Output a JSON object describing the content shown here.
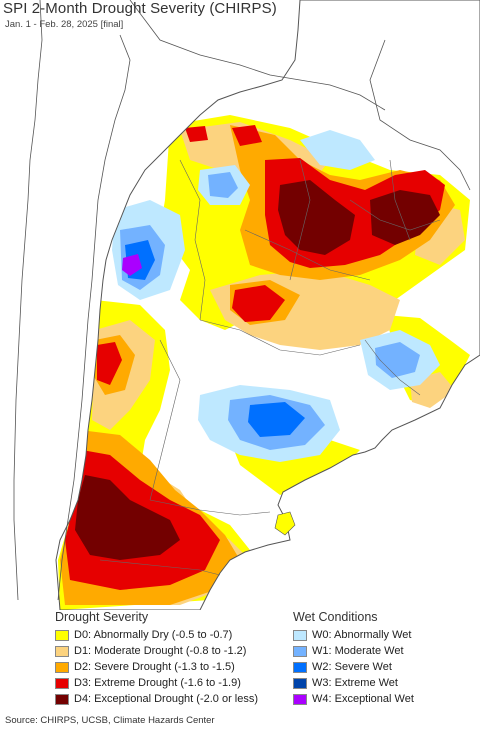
{
  "header": {
    "title": "SPI 2-Month Drought Severity (CHIRPS)",
    "subtitle": "Jan. 1 - Feb. 28, 2025 [final]"
  },
  "colors": {
    "ocean": "#ffffff",
    "land_neutral": "#ffffff",
    "outside_land": "#ffffff",
    "border": "#555555",
    "d0": "#ffff00",
    "d1": "#fcd37f",
    "d2": "#ffaa00",
    "d3": "#e60000",
    "d4": "#730000",
    "w0": "#bee8ff",
    "w1": "#73b2ff",
    "w2": "#0070ff",
    "w3": "#0044aa",
    "w4": "#aa00ff"
  },
  "legend": {
    "drought": {
      "heading": "Drought Severity",
      "items": [
        {
          "label": "D0: Abnormally Dry (-0.5 to -0.7)",
          "color": "#ffff00"
        },
        {
          "label": "D1: Moderate Drought (-0.8 to -1.2)",
          "color": "#fcd37f"
        },
        {
          "label": "D2: Severe Drought (-1.3 to -1.5)",
          "color": "#ffaa00"
        },
        {
          "label": "D3: Extreme Drought (-1.6 to -1.9)",
          "color": "#e60000"
        },
        {
          "label": "D4: Exceptional Drought (-2.0 or less)",
          "color": "#730000"
        }
      ]
    },
    "wet": {
      "heading": "Wet Conditions",
      "items": [
        {
          "label": "W0: Abnormally Wet",
          "color": "#bee8ff"
        },
        {
          "label": "W1: Moderate Wet",
          "color": "#73b2ff"
        },
        {
          "label": "W2: Severe Wet",
          "color": "#0070ff"
        },
        {
          "label": "W3: Extreme Wet",
          "color": "#0044aa"
        },
        {
          "label": "W4: Exceptional Wet",
          "color": "#aa00ff"
        }
      ]
    }
  },
  "footer": {
    "source": "Source: CHIRPS, UCSB, Climate Hazards Center"
  }
}
